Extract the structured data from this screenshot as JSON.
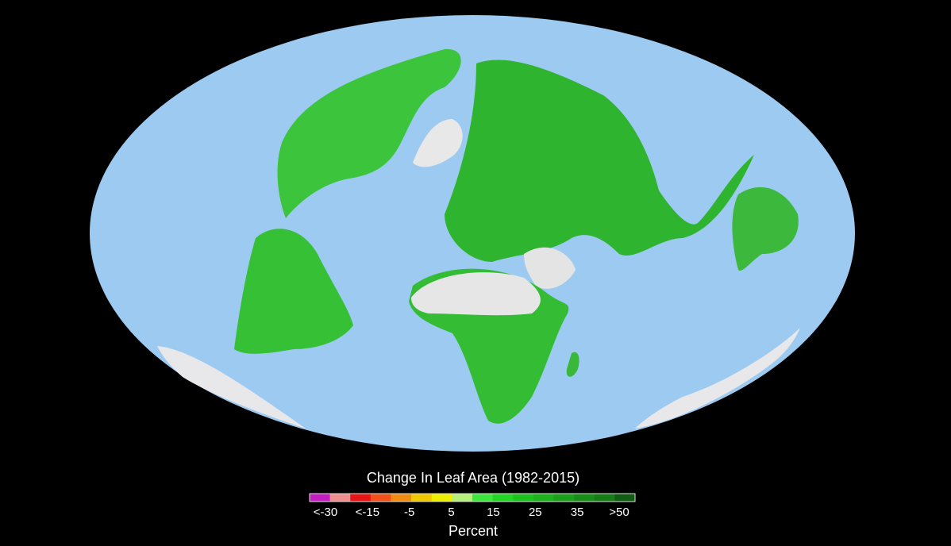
{
  "legend": {
    "title": "Change In Leaf Area (1982-2015)",
    "labels": [
      "<-30",
      "<-15",
      "-5",
      "5",
      "15",
      "25",
      "35",
      ">50"
    ],
    "colors": [
      "#c21ec2",
      "#f08f8f",
      "#e61414",
      "#f0501a",
      "#f08c14",
      "#f0c800",
      "#eef000",
      "#b4f07a",
      "#3ce63c",
      "#24d424",
      "#1ec21e",
      "#1cb21c",
      "#1aa01a",
      "#188e18",
      "#167c16",
      "#125c12"
    ],
    "unit": "Percent"
  }
}
